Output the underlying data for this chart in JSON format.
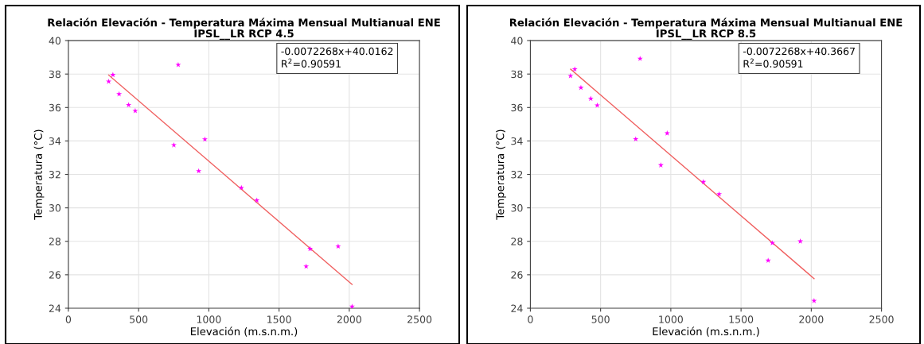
{
  "chart_data": [
    {
      "type": "scatter",
      "title": "Relación Elevación - Temperatura Máxima Mensual Multianual ENE\nIPSL__LR RCP 4.5",
      "xlabel": "Elevación (m.s.n.m.)",
      "ylabel": "Temperatura (°C)",
      "xlim": [
        0,
        2500
      ],
      "ylim": [
        24,
        40
      ],
      "xticks": [
        0,
        500,
        1000,
        1500,
        2000,
        2500
      ],
      "yticks": [
        24,
        26,
        28,
        30,
        32,
        34,
        36,
        38,
        40
      ],
      "grid": true,
      "marker": "star",
      "annotations": [
        "-0.0072268x+40.0162",
        "R$^{2}$=0.90591"
      ],
      "series": [
        {
          "color": "#ff00ff",
          "x": [
            287,
            317,
            361,
            429,
            476,
            751,
            782,
            928,
            972,
            1232,
            1342,
            1693,
            1721,
            1921,
            2020
          ],
          "values": [
            37.55,
            37.95,
            36.8,
            36.15,
            35.8,
            33.75,
            38.55,
            32.2,
            34.1,
            31.2,
            30.45,
            26.5,
            27.55,
            27.7,
            24.1
          ]
        },
        {
          "type": "line",
          "color": "#f06060",
          "marker": "none",
          "x": [
            287,
            2020
          ],
          "values": [
            37.94,
            25.42
          ]
        }
      ]
    },
    {
      "type": "scatter",
      "title": "Relación Elevación - Temperatura Máxima Mensual Multianual ENE\nIPSL__LR RCP 8.5",
      "xlabel": "Elevación (m.s.n.m.)",
      "ylabel": "Temperatura (°C)",
      "xlim": [
        0,
        2500
      ],
      "ylim": [
        24,
        40
      ],
      "xticks": [
        0,
        500,
        1000,
        1500,
        2000,
        2500
      ],
      "yticks": [
        24,
        26,
        28,
        30,
        32,
        34,
        36,
        38,
        40
      ],
      "grid": true,
      "marker": "star",
      "annotations": [
        "-0.0072268x+40.3667",
        "R$^{2}$=0.90591"
      ],
      "series": [
        {
          "color": "#ff00ff",
          "x": [
            286,
            316,
            360,
            430,
            476,
            750,
            781,
            929,
            974,
            1232,
            1344,
            1693,
            1723,
            1922,
            2020
          ],
          "values": [
            37.89,
            38.29,
            37.18,
            36.53,
            36.13,
            34.11,
            38.92,
            32.55,
            34.46,
            31.55,
            30.82,
            26.85,
            27.9,
            28.0,
            24.44
          ]
        },
        {
          "type": "line",
          "color": "#f06060",
          "marker": "none",
          "x": [
            287,
            2020
          ],
          "values": [
            38.29,
            25.77
          ]
        }
      ]
    }
  ]
}
